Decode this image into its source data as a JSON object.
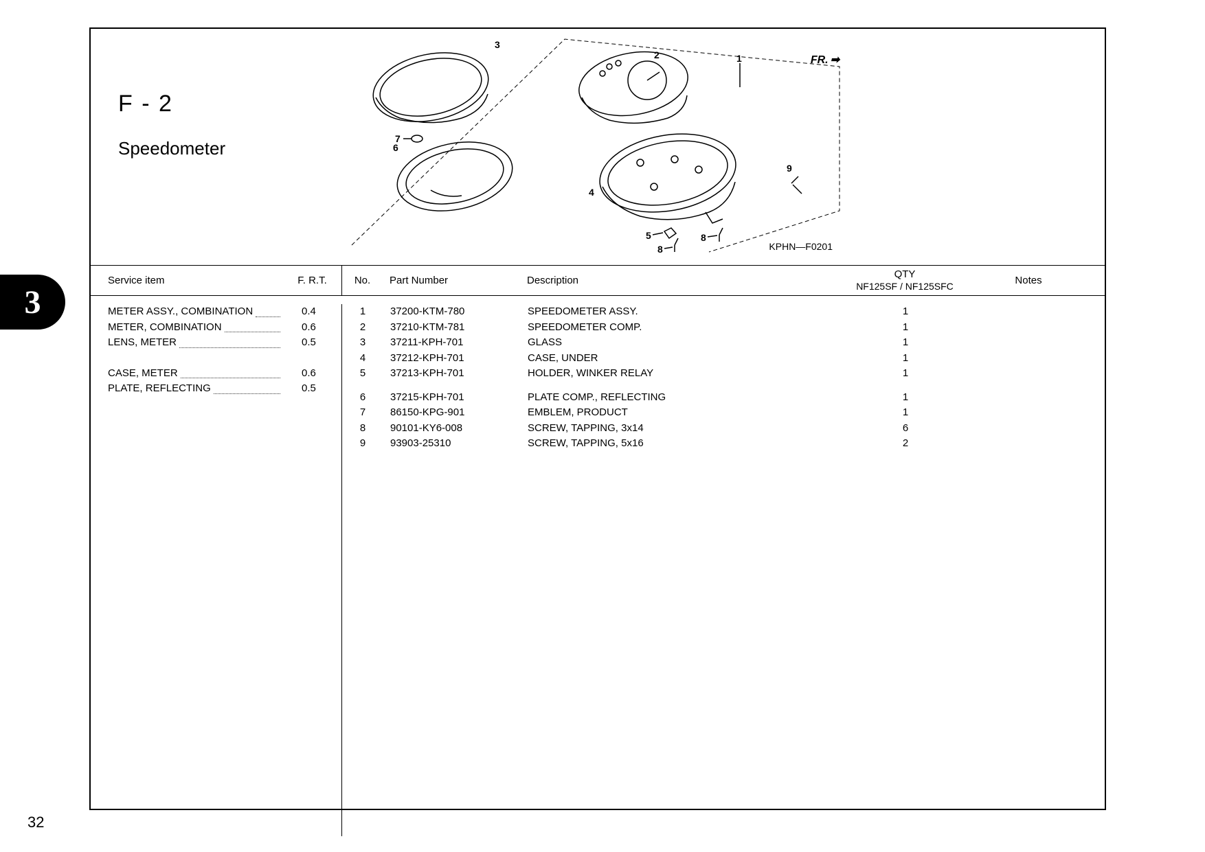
{
  "section": {
    "code": "F - 2",
    "title": "Speedometer"
  },
  "diagram": {
    "fr_label": "FR.",
    "code": "KPHN—F0201",
    "callouts": [
      "1",
      "2",
      "3",
      "4",
      "5",
      "6",
      "7",
      "8",
      "8",
      "9"
    ]
  },
  "table": {
    "headers": {
      "service": "Service item",
      "frt": "F. R.T.",
      "no": "No.",
      "partnum": "Part Number",
      "desc": "Description",
      "qty_top": "QTY",
      "qty_bottom": "NF125SF / NF125SFC",
      "notes": "Notes"
    },
    "service_items": [
      {
        "name": "METER ASSY., COMBINATION",
        "frt": "0.4"
      },
      {
        "name": "METER, COMBINATION",
        "frt": "0.6"
      },
      {
        "name": "LENS, METER",
        "frt": "0.5"
      }
    ],
    "service_items2": [
      {
        "name": "CASE, METER",
        "frt": "0.6"
      },
      {
        "name": "PLATE, REFLECTING",
        "frt": "0.5"
      }
    ],
    "parts_group1": [
      {
        "no": "1",
        "partnum": "37200-KTM-780",
        "desc": "SPEEDOMETER ASSY.",
        "qty": "1"
      },
      {
        "no": "2",
        "partnum": "37210-KTM-781",
        "desc": "SPEEDOMETER COMP.",
        "qty": "1"
      },
      {
        "no": "3",
        "partnum": "37211-KPH-701",
        "desc": "GLASS",
        "qty": "1"
      },
      {
        "no": "4",
        "partnum": "37212-KPH-701",
        "desc": "CASE, UNDER",
        "qty": "1"
      },
      {
        "no": "5",
        "partnum": "37213-KPH-701",
        "desc": "HOLDER, WINKER RELAY",
        "qty": "1"
      }
    ],
    "parts_group2": [
      {
        "no": "6",
        "partnum": "37215-KPH-701",
        "desc": "PLATE COMP., REFLECTING",
        "qty": "1"
      },
      {
        "no": "7",
        "partnum": "86150-KPG-901",
        "desc": "EMBLEM, PRODUCT",
        "qty": "1"
      },
      {
        "no": "8",
        "partnum": "90101-KY6-008",
        "desc": "SCREW, TAPPING, 3x14",
        "qty": "6"
      },
      {
        "no": "9",
        "partnum": "93903-25310",
        "desc": "SCREW, TAPPING, 5x16",
        "qty": "2"
      }
    ]
  },
  "page": {
    "tab_number": "3",
    "page_number": "32"
  }
}
